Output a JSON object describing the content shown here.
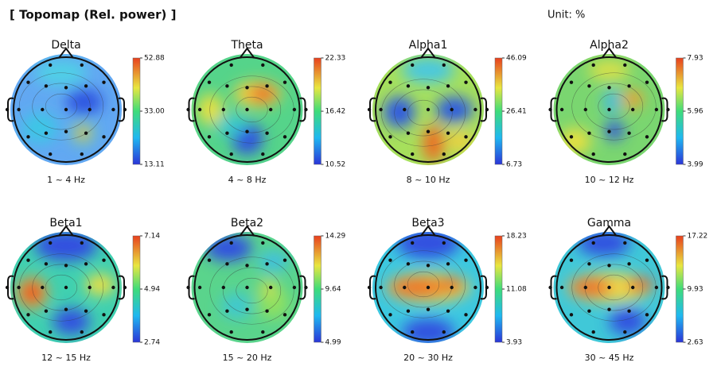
{
  "header": {
    "title": "[ Topomap (Rel. power) ]",
    "unit": "Unit: %"
  },
  "chart_data": [
    {
      "type": "topomap",
      "title": "Delta",
      "subtitle": "1 ~ 4 Hz",
      "zlim": [
        13.11,
        52.88
      ],
      "zticks": [
        13.11,
        {
          "value": 33,
          "label": "33.00"
        },
        52.88
      ]
    },
    {
      "type": "topomap",
      "title": "Theta",
      "subtitle": "4 ~ 8 Hz",
      "zlim": [
        10.52,
        22.33
      ],
      "zticks": [
        10.52,
        16.42,
        22.33
      ]
    },
    {
      "type": "topomap",
      "title": "Alpha1",
      "subtitle": "8 ~ 10 Hz",
      "zlim": [
        6.73,
        46.09
      ],
      "zticks": [
        6.73,
        26.41,
        46.09
      ]
    },
    {
      "type": "topomap",
      "title": "Alpha2",
      "subtitle": "10 ~ 12 Hz",
      "zlim": [
        3.99,
        7.93
      ],
      "zticks": [
        3.99,
        5.96,
        7.93
      ]
    },
    {
      "type": "topomap",
      "title": "Beta1",
      "subtitle": "12 ~ 15 Hz",
      "zlim": [
        2.74,
        7.14
      ],
      "zticks": [
        2.74,
        4.94,
        7.14
      ]
    },
    {
      "type": "topomap",
      "title": "Beta2",
      "subtitle": "15 ~ 20 Hz",
      "zlim": [
        4.99,
        14.29
      ],
      "zticks": [
        4.99,
        9.64,
        14.29
      ]
    },
    {
      "type": "topomap",
      "title": "Beta3",
      "subtitle": "20 ~ 30 Hz",
      "zlim": [
        3.93,
        18.23
      ],
      "zticks": [
        3.93,
        11.08,
        18.23
      ]
    },
    {
      "type": "topomap",
      "title": "Gamma",
      "subtitle": "30 ~ 45 Hz",
      "zlim": [
        2.63,
        17.22
      ],
      "zticks": [
        2.63,
        9.93,
        17.22
      ]
    }
  ]
}
